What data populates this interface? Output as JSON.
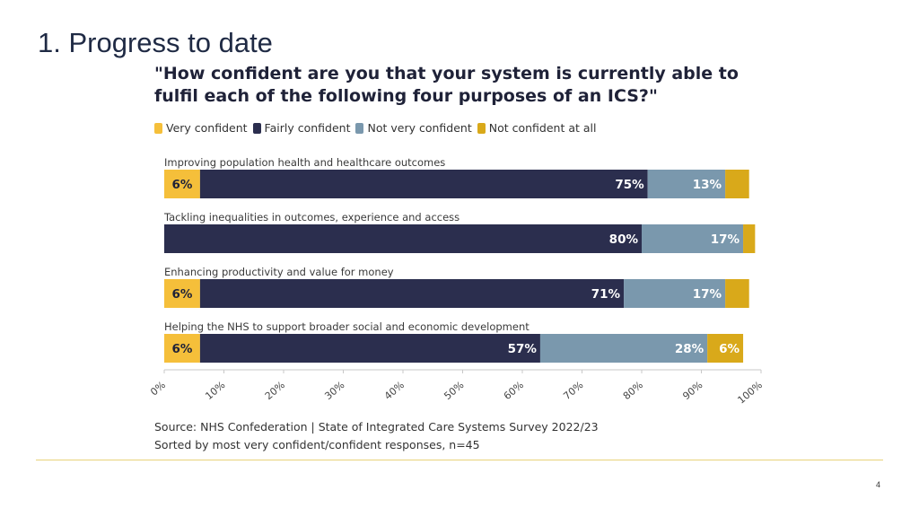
{
  "slide": {
    "title": "1. Progress to date",
    "page_number": "4"
  },
  "source": {
    "line1": "Source: NHS Confederation | State of Integrated Care Systems Survey 2022/23",
    "line2": "Sorted by most very confident/confident responses, n=45"
  },
  "chart_data": {
    "type": "bar",
    "orientation": "horizontal",
    "stacked": true,
    "title": "\"How confident are you that your system is currently able to fulfil each of the following four purposes of an ICS?\"",
    "legend_position": "top-left",
    "categories": [
      "Improving population health and healthcare outcomes",
      "Tackling inequalities in outcomes, experience and access",
      "Enhancing productivity and value for money",
      "Helping the NHS to support broader social and economic development"
    ],
    "series": [
      {
        "name": "Very confident",
        "color": "#f5bf3a",
        "values": [
          6,
          0,
          6,
          6
        ],
        "labels": [
          "6%",
          "",
          "6%",
          "6%"
        ]
      },
      {
        "name": "Fairly confident",
        "color": "#2b2e4e",
        "values": [
          75,
          80,
          71,
          57
        ],
        "labels": [
          "75%",
          "80%",
          "71%",
          "57%"
        ]
      },
      {
        "name": "Not very confident",
        "color": "#7a98ad",
        "values": [
          13,
          17,
          17,
          28
        ],
        "labels": [
          "13%",
          "17%",
          "17%",
          "28%"
        ]
      },
      {
        "name": "Not confident at all",
        "color": "#d9a91a",
        "values": [
          4,
          2,
          4,
          6
        ],
        "labels": [
          "",
          "",
          "",
          "6%"
        ]
      }
    ],
    "x_ticks": [
      "0%",
      "10%",
      "20%",
      "30%",
      "40%",
      "50%",
      "60%",
      "70%",
      "80%",
      "90%",
      "100%"
    ],
    "xlim": [
      0,
      100
    ],
    "grid": false
  }
}
